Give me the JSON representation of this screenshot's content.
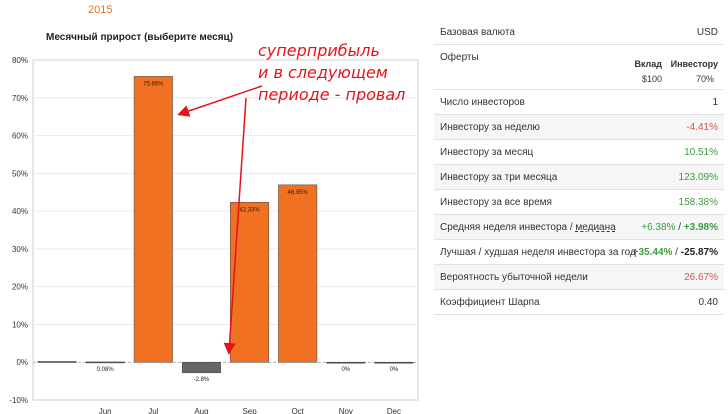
{
  "year": "2015",
  "chart": {
    "title": "Месячный прирост (выберите месяц)"
  },
  "annotation": {
    "lines": [
      "суперприбыль",
      "и в следующем",
      "периоде - провал"
    ]
  },
  "chart_data": {
    "type": "bar",
    "title": "Месячный прирост (выберите месяц)",
    "categories": [
      "",
      "Jun",
      "Jul",
      "Aug",
      "Sep",
      "Oct",
      "Nov",
      "Dec"
    ],
    "values": [
      0.2,
      0.08,
      75.66,
      -2.8,
      42.33,
      46.95,
      0,
      0
    ],
    "labels": [
      "",
      "0.08%",
      "75.66%",
      "-2.8%",
      "42.33%",
      "46.95%",
      "0%",
      "0%"
    ],
    "ylim": [
      -10,
      80
    ],
    "yticks": [
      "-10%",
      "0%",
      "10%",
      "20%",
      "30%",
      "40%",
      "50%",
      "60%",
      "70%",
      "80%"
    ],
    "xlabel": "",
    "ylabel": "",
    "colors": {
      "positive": "#f07122",
      "negative": "#666666"
    }
  },
  "table": {
    "base_currency": {
      "label": "Базовая валюта",
      "value": "USD"
    },
    "offers": {
      "label": "Оферты",
      "col1_head": "Вклад",
      "col2_head": "Инвестору",
      "col1": "$100",
      "col2": "70%"
    },
    "investors": {
      "label": "Число инвесторов",
      "value": "1"
    },
    "week": {
      "label": "Инвестору за неделю",
      "value": "-4.41%"
    },
    "month": {
      "label": "Инвестору за месяц",
      "value": "10.51%"
    },
    "three_months": {
      "label": "Инвестору за три месяца",
      "value": "123.09%"
    },
    "all_time": {
      "label": "Инвестору за все время",
      "value": "158.38%"
    },
    "avg_week": {
      "label": "Средняя неделя инвестора / ",
      "label_link": "медиана",
      "value1": "+6.38%",
      "sep": " / ",
      "value2": "+3.98%"
    },
    "best_worst": {
      "label": "Лучшая / худшая неделя инвестора за год",
      "value1": "+35.44%",
      "sep": " / ",
      "value2": "-25.87%"
    },
    "loss_prob": {
      "label": "Вероятность убыточной недели",
      "value": "26.67%"
    },
    "sharpe": {
      "label": "Коэффициент Шарпа",
      "value": "0.40"
    }
  }
}
